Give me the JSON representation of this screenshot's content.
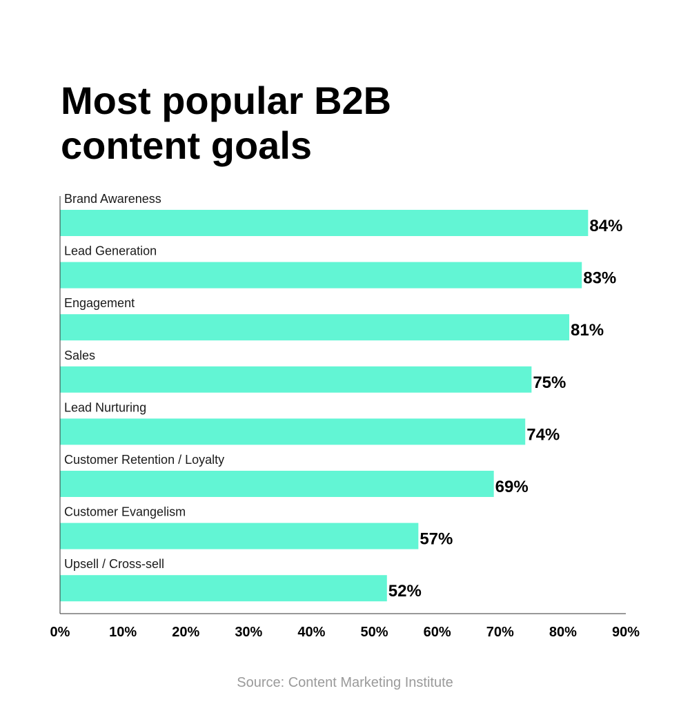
{
  "chart_data": {
    "type": "bar",
    "orientation": "horizontal",
    "title_lines": [
      "Most popular B2B",
      "content goals"
    ],
    "categories": [
      "Brand Awareness",
      "Lead Generation",
      "Engagement",
      "Sales",
      "Lead Nurturing",
      "Customer Retention / Loyalty",
      "Customer Evangelism",
      "Upsell / Cross-sell"
    ],
    "values": [
      84,
      83,
      81,
      75,
      74,
      69,
      57,
      52
    ],
    "value_labels": [
      "84%",
      "83%",
      "81%",
      "75%",
      "74%",
      "69%",
      "57%",
      "52%"
    ],
    "xlim": [
      0,
      90
    ],
    "x_ticks": [
      0,
      10,
      20,
      30,
      40,
      50,
      60,
      70,
      80,
      90
    ],
    "x_tick_labels": [
      "0%",
      "10%",
      "20%",
      "30%",
      "40%",
      "50%",
      "60%",
      "70%",
      "80%",
      "90%"
    ],
    "grid": false,
    "bar_color": "#62f5d4",
    "axis_color": "#333333",
    "source": "Source: Content Marketing Institute"
  }
}
